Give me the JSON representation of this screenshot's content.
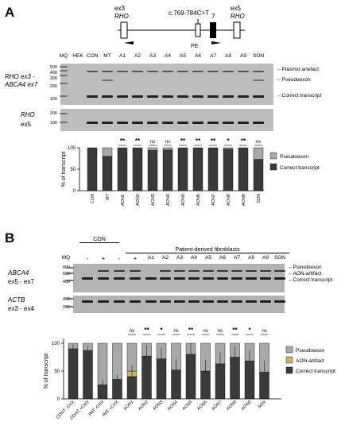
{
  "panelA": {
    "letter": "A",
    "gene": {
      "ex3": "ex3",
      "rho1": "RHO",
      "mutation": "c.769-784C>T",
      "pe": "PE",
      "ex7": "7",
      "ex5": "ex5",
      "rho2": "RHO"
    },
    "gel1_label_line1": "RHO ex3 -",
    "gel1_label_line2": "ABCA4 ex7",
    "gel2_label_line1": "RHO",
    "gel2_label_line2": "ex5",
    "lanes": [
      "MQ",
      "HEK",
      "CON",
      "MT",
      "A1",
      "A2",
      "A3",
      "A4",
      "A5",
      "A6",
      "A7",
      "A8",
      "A9",
      "SON"
    ],
    "mw1": [
      "500",
      "400",
      "300",
      "200",
      "100"
    ],
    "mw2": [
      "200",
      "100"
    ],
    "annotations": [
      "Plasmid artefact",
      "Pseudoexon",
      "Correct transcript"
    ],
    "significance": [
      "**",
      "**",
      "ns",
      "ns",
      "**",
      "**",
      "**",
      "*",
      "**",
      "ns"
    ],
    "chart_data": {
      "type": "bar",
      "stacked": true,
      "categories": [
        "CON",
        "MT",
        "AON1",
        "AON2",
        "AON3",
        "AON4",
        "AON5",
        "AON6",
        "AON7",
        "AON8",
        "AON9",
        "SON"
      ],
      "ylabel": "% of transcript",
      "ylim": [
        0,
        100
      ],
      "yticks": [
        "0",
        "50",
        "100"
      ],
      "series": [
        {
          "name": "Correct transcript",
          "color": "#3a3a3a",
          "values": [
            100,
            80,
            100,
            100,
            94,
            95,
            100,
            100,
            100,
            97,
            100,
            73
          ]
        },
        {
          "name": "Pseudoexon",
          "color": "#a8a8a8",
          "values": [
            0,
            20,
            0,
            0,
            6,
            5,
            0,
            0,
            0,
            3,
            0,
            27
          ]
        }
      ],
      "legend": "right"
    }
  },
  "panelB": {
    "letter": "B",
    "group_con": "CON",
    "group_pat": "Patient-derived fibroblasts",
    "mq": "MQ",
    "chx": [
      "-",
      "+",
      "-",
      "+"
    ],
    "lanes": [
      "A1",
      "A2",
      "A3",
      "A4",
      "A5",
      "A6",
      "A7",
      "A8",
      "A9",
      "SON"
    ],
    "gel1_label_line1": "ABCA4",
    "gel1_label_line2": "ex5 - ex7",
    "gel2_label_line1": "ACTB",
    "gel2_label_line2": "ex3 - ex4",
    "mw1": [
      "800",
      "600",
      "400"
    ],
    "mw2": [
      "400",
      "200"
    ],
    "annotations": [
      "Pseudoexon",
      "AON-artifact",
      "Correct transcript"
    ],
    "significance": [
      "ns",
      "**",
      "*",
      "ns",
      "**",
      "ns",
      "ns",
      "**",
      "*",
      "ns"
    ],
    "chart_data": {
      "type": "bar",
      "stacked": true,
      "categories": [
        "CONT -CHX",
        "CONT +CHX",
        "PAT -CHX",
        "PAT +CHX",
        "AON1",
        "AON2",
        "AON3",
        "AON4",
        "AON5",
        "AON6",
        "AON7",
        "AON8",
        "AON9",
        "SON"
      ],
      "ylabel": "% of transcript",
      "ylim": [
        0,
        100
      ],
      "yticks": [
        "0",
        "50",
        "100"
      ],
      "series": [
        {
          "name": "Correct transcript",
          "color": "#3a3a3a",
          "values": [
            90,
            87,
            25,
            35,
            40,
            77,
            72,
            52,
            80,
            50,
            63,
            75,
            68,
            48
          ]
        },
        {
          "name": "AON-artifact",
          "color": "#c9b46a",
          "values": [
            0,
            0,
            0,
            0,
            10,
            0,
            0,
            0,
            0,
            0,
            0,
            0,
            0,
            0
          ]
        },
        {
          "name": "Pseudoexon",
          "color": "#a8a8a8",
          "values": [
            10,
            13,
            75,
            65,
            50,
            23,
            28,
            48,
            20,
            50,
            37,
            25,
            32,
            52
          ]
        }
      ],
      "legend": "right"
    }
  }
}
